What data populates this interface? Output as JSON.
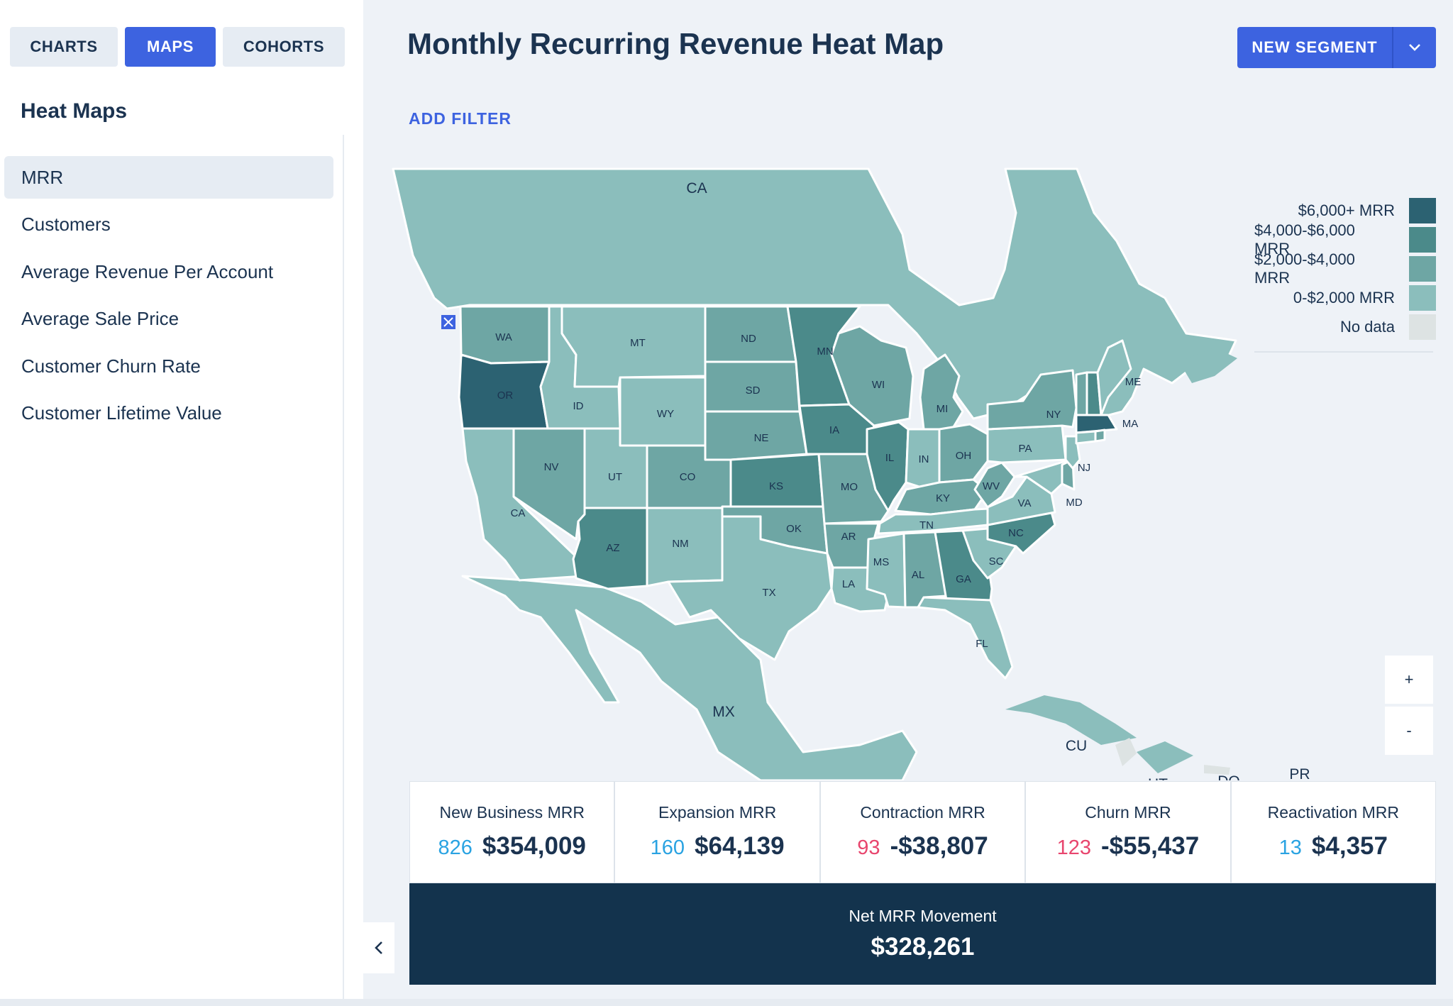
{
  "tabs": [
    {
      "label": "CHARTS",
      "active": false
    },
    {
      "label": "MAPS",
      "active": true
    },
    {
      "label": "COHORTS",
      "active": false
    }
  ],
  "sidebar": {
    "section_title": "Heat Maps",
    "items": [
      {
        "label": "MRR",
        "selected": true
      },
      {
        "label": "Customers"
      },
      {
        "label": "Average Revenue Per Account"
      },
      {
        "label": "Average Sale Price"
      },
      {
        "label": "Customer Churn Rate"
      },
      {
        "label": "Customer Lifetime Value"
      }
    ]
  },
  "header": {
    "title": "Monthly Recurring Revenue Heat Map",
    "new_segment_label": "NEW SEGMENT",
    "add_filter_label": "ADD FILTER"
  },
  "legend": {
    "items": [
      {
        "label": "$6,000+ MRR",
        "color": "#2c6272"
      },
      {
        "label": "$4,000-$6,000 MRR",
        "color": "#4b8a8a"
      },
      {
        "label": "$2,000-$4,000 MRR",
        "color": "#6ea6a4"
      },
      {
        "label": "0-$2,000 MRR",
        "color": "#8bbebc"
      },
      {
        "label": "No data",
        "color": "#dde3e3"
      }
    ]
  },
  "map": {
    "region_labels": [
      "CA",
      "MX",
      "CU",
      "PR",
      "DO",
      "HT"
    ],
    "state_labels": [
      "WA",
      "OR",
      "CA",
      "ID",
      "NV",
      "MT",
      "WY",
      "UT",
      "AZ",
      "CO",
      "NM",
      "ND",
      "SD",
      "NE",
      "KS",
      "OK",
      "TX",
      "MN",
      "IA",
      "MO",
      "AR",
      "LA",
      "WI",
      "IL",
      "MI",
      "IN",
      "OH",
      "KY",
      "TN",
      "MS",
      "AL",
      "GA",
      "FL",
      "SC",
      "NC",
      "VA",
      "WV",
      "PA",
      "NY",
      "ME",
      "MA",
      "NJ",
      "MD"
    ]
  },
  "zoom": {
    "in_label": "+",
    "out_label": "-"
  },
  "stats": [
    {
      "label": "New Business MRR",
      "count": "826",
      "value": "$354,009",
      "count_type": "pos"
    },
    {
      "label": "Expansion MRR",
      "count": "160",
      "value": "$64,139",
      "count_type": "pos"
    },
    {
      "label": "Contraction MRR",
      "count": "93",
      "value": "-$38,807",
      "count_type": "neg"
    },
    {
      "label": "Churn MRR",
      "count": "123",
      "value": "-$55,437",
      "count_type": "neg"
    },
    {
      "label": "Reactivation MRR",
      "count": "13",
      "value": "$4,357",
      "count_type": "pos"
    }
  ],
  "net": {
    "label": "Net MRR Movement",
    "value": "$328,261"
  }
}
